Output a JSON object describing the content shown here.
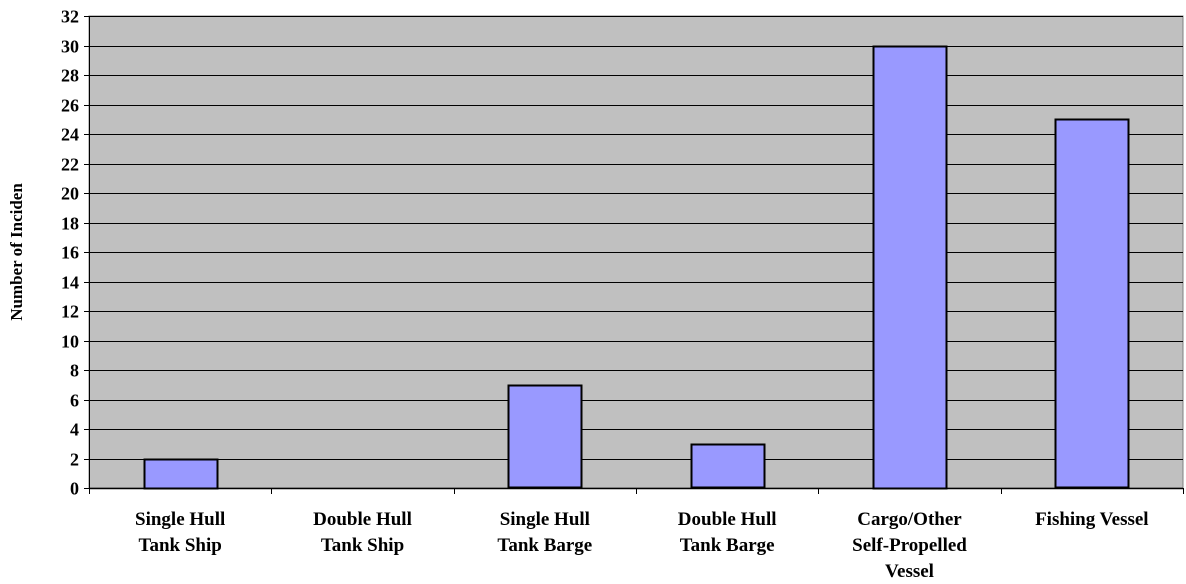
{
  "chart_data": {
    "type": "bar",
    "title": "",
    "xlabel": "",
    "ylabel": "Number of Inciden",
    "categories": [
      [
        "Single Hull",
        "Tank Ship"
      ],
      [
        "Double Hull",
        "Tank Ship"
      ],
      [
        "Single Hull",
        "Tank Barge"
      ],
      [
        "Double Hull",
        "Tank Barge"
      ],
      [
        "Cargo/Other",
        "Self-Propelled",
        "Vessel"
      ],
      [
        "Fishing Vessel"
      ]
    ],
    "values": [
      2,
      0,
      7,
      3,
      30,
      25
    ],
    "ylim": [
      0,
      32
    ],
    "ytick_step": 2,
    "grid": true,
    "legend": "none",
    "colors": {
      "plot_background": "#c0c0c0",
      "bar_fill": "#9999ff",
      "bar_stroke": "#000000",
      "gridline": "#000000"
    }
  }
}
